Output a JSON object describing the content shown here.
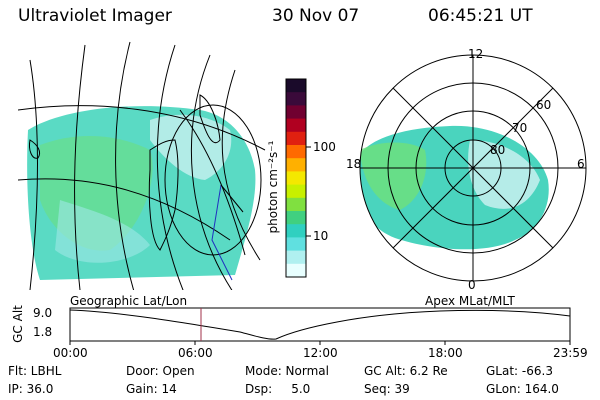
{
  "header": {
    "title": "Ultraviolet Imager",
    "date": "30 Nov 07",
    "time": "06:45:21 UT"
  },
  "colorbar": {
    "unit_label": "photon cm⁻²s⁻¹",
    "ticks": [
      "100",
      "10"
    ],
    "colors": [
      "#1a0a2a",
      "#3a0a3a",
      "#700030",
      "#b00020",
      "#e02010",
      "#ff6a00",
      "#ffb000",
      "#f4e800",
      "#c8f000",
      "#80e040",
      "#40d080",
      "#30d0c0",
      "#60e0e0",
      "#b0f0f0",
      "#e8ffff"
    ]
  },
  "polar": {
    "mlt_labels": {
      "top": "12",
      "left": "18",
      "right": "6",
      "bottom": "0"
    },
    "lat_labels": [
      "60",
      "70",
      "80"
    ]
  },
  "timeline": {
    "left_label": "Geographic Lat/Lon",
    "right_label": "Apex MLat/MLT",
    "yaxis_label": "GC Alt",
    "y_ticks": [
      "9.0",
      "1.8"
    ],
    "x_ticks": [
      "00:00",
      "06:00",
      "12:00",
      "18:00",
      "23:59"
    ]
  },
  "info": {
    "flt": "Flt: LBHL",
    "ip": "IP: 36.0",
    "door": "Door: Open",
    "gain": "Gain: 14",
    "mode": "Mode: Normal",
    "dsp": "Dsp:     5.0",
    "gcalt": "GC Alt: 6.2 Re",
    "seq": "Seq: 39",
    "glat": "GLat: -66.3",
    "glon": "GLon: 164.0"
  }
}
